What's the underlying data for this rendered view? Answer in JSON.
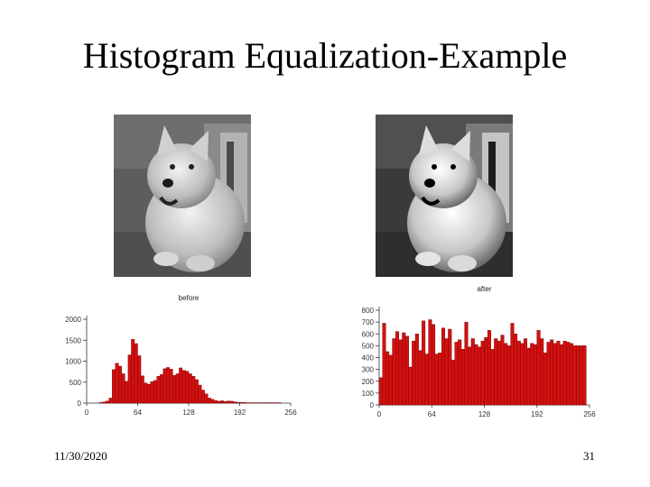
{
  "slide": {
    "title": "Histogram Equalization-Example",
    "date": "11/30/2020",
    "page_number": "31"
  },
  "images": {
    "before": {
      "subject": "grayscale photo of a west highland terrier (original, low contrast)"
    },
    "after": {
      "subject": "grayscale photo of a west highland terrier (equalized, higher contrast)"
    }
  },
  "colors": {
    "bar_fill": "#d41010",
    "bar_stroke": "#6a0000",
    "axis": "#333333"
  },
  "chart_data": [
    {
      "type": "bar",
      "title": "before",
      "xlabel": "",
      "ylabel": "",
      "xlim": [
        0,
        256
      ],
      "ylim": [
        0,
        2000
      ],
      "xticks": [
        "0",
        "64",
        "128",
        "192",
        "256"
      ],
      "yticks": [
        "0",
        "500",
        "1000",
        "1500",
        "2000"
      ],
      "bin_width": 4,
      "x": [
        16,
        20,
        24,
        28,
        32,
        36,
        40,
        44,
        48,
        52,
        56,
        60,
        64,
        68,
        72,
        76,
        80,
        84,
        88,
        92,
        96,
        100,
        104,
        108,
        112,
        116,
        120,
        124,
        128,
        132,
        136,
        140,
        144,
        148,
        152,
        156,
        160,
        164,
        168,
        172,
        176,
        180,
        184,
        188,
        192,
        196,
        200,
        204,
        208,
        212,
        216,
        220,
        224,
        228,
        232,
        236,
        240
      ],
      "values": [
        15,
        30,
        50,
        120,
        800,
        950,
        880,
        700,
        520,
        1150,
        1520,
        1420,
        1130,
        650,
        480,
        450,
        510,
        540,
        640,
        680,
        820,
        850,
        810,
        660,
        700,
        840,
        780,
        760,
        700,
        640,
        560,
        430,
        310,
        220,
        120,
        90,
        60,
        45,
        55,
        40,
        50,
        45,
        30,
        20,
        20,
        15,
        10,
        10,
        10,
        10,
        10,
        10,
        10,
        10,
        10,
        10,
        10
      ]
    },
    {
      "type": "bar",
      "title": "after",
      "xlabel": "",
      "ylabel": "",
      "xlim": [
        0,
        256
      ],
      "ylim": [
        0,
        800
      ],
      "xticks": [
        "0",
        "64",
        "128",
        "192",
        "256"
      ],
      "yticks": [
        "0",
        "100",
        "200",
        "300",
        "400",
        "500",
        "600",
        "700",
        "800"
      ],
      "bin_width": 4,
      "x": [
        0,
        4,
        8,
        12,
        16,
        20,
        24,
        28,
        32,
        36,
        40,
        44,
        48,
        52,
        56,
        60,
        64,
        68,
        72,
        76,
        80,
        84,
        88,
        92,
        96,
        100,
        104,
        108,
        112,
        116,
        120,
        124,
        128,
        132,
        136,
        140,
        144,
        148,
        152,
        156,
        160,
        164,
        168,
        172,
        176,
        180,
        184,
        188,
        192,
        196,
        200,
        204,
        208,
        212,
        216,
        220,
        224,
        228,
        232,
        236,
        240,
        244,
        248
      ],
      "values": [
        230,
        690,
        450,
        420,
        560,
        620,
        550,
        610,
        580,
        320,
        540,
        600,
        460,
        710,
        430,
        720,
        680,
        430,
        440,
        650,
        560,
        640,
        380,
        530,
        550,
        470,
        700,
        490,
        560,
        510,
        490,
        540,
        570,
        630,
        470,
        560,
        540,
        590,
        520,
        500,
        690,
        600,
        540,
        520,
        560,
        480,
        520,
        510,
        630,
        560,
        440,
        530,
        550,
        520,
        540,
        510,
        540,
        530,
        520,
        500,
        500,
        500,
        500
      ]
    }
  ]
}
